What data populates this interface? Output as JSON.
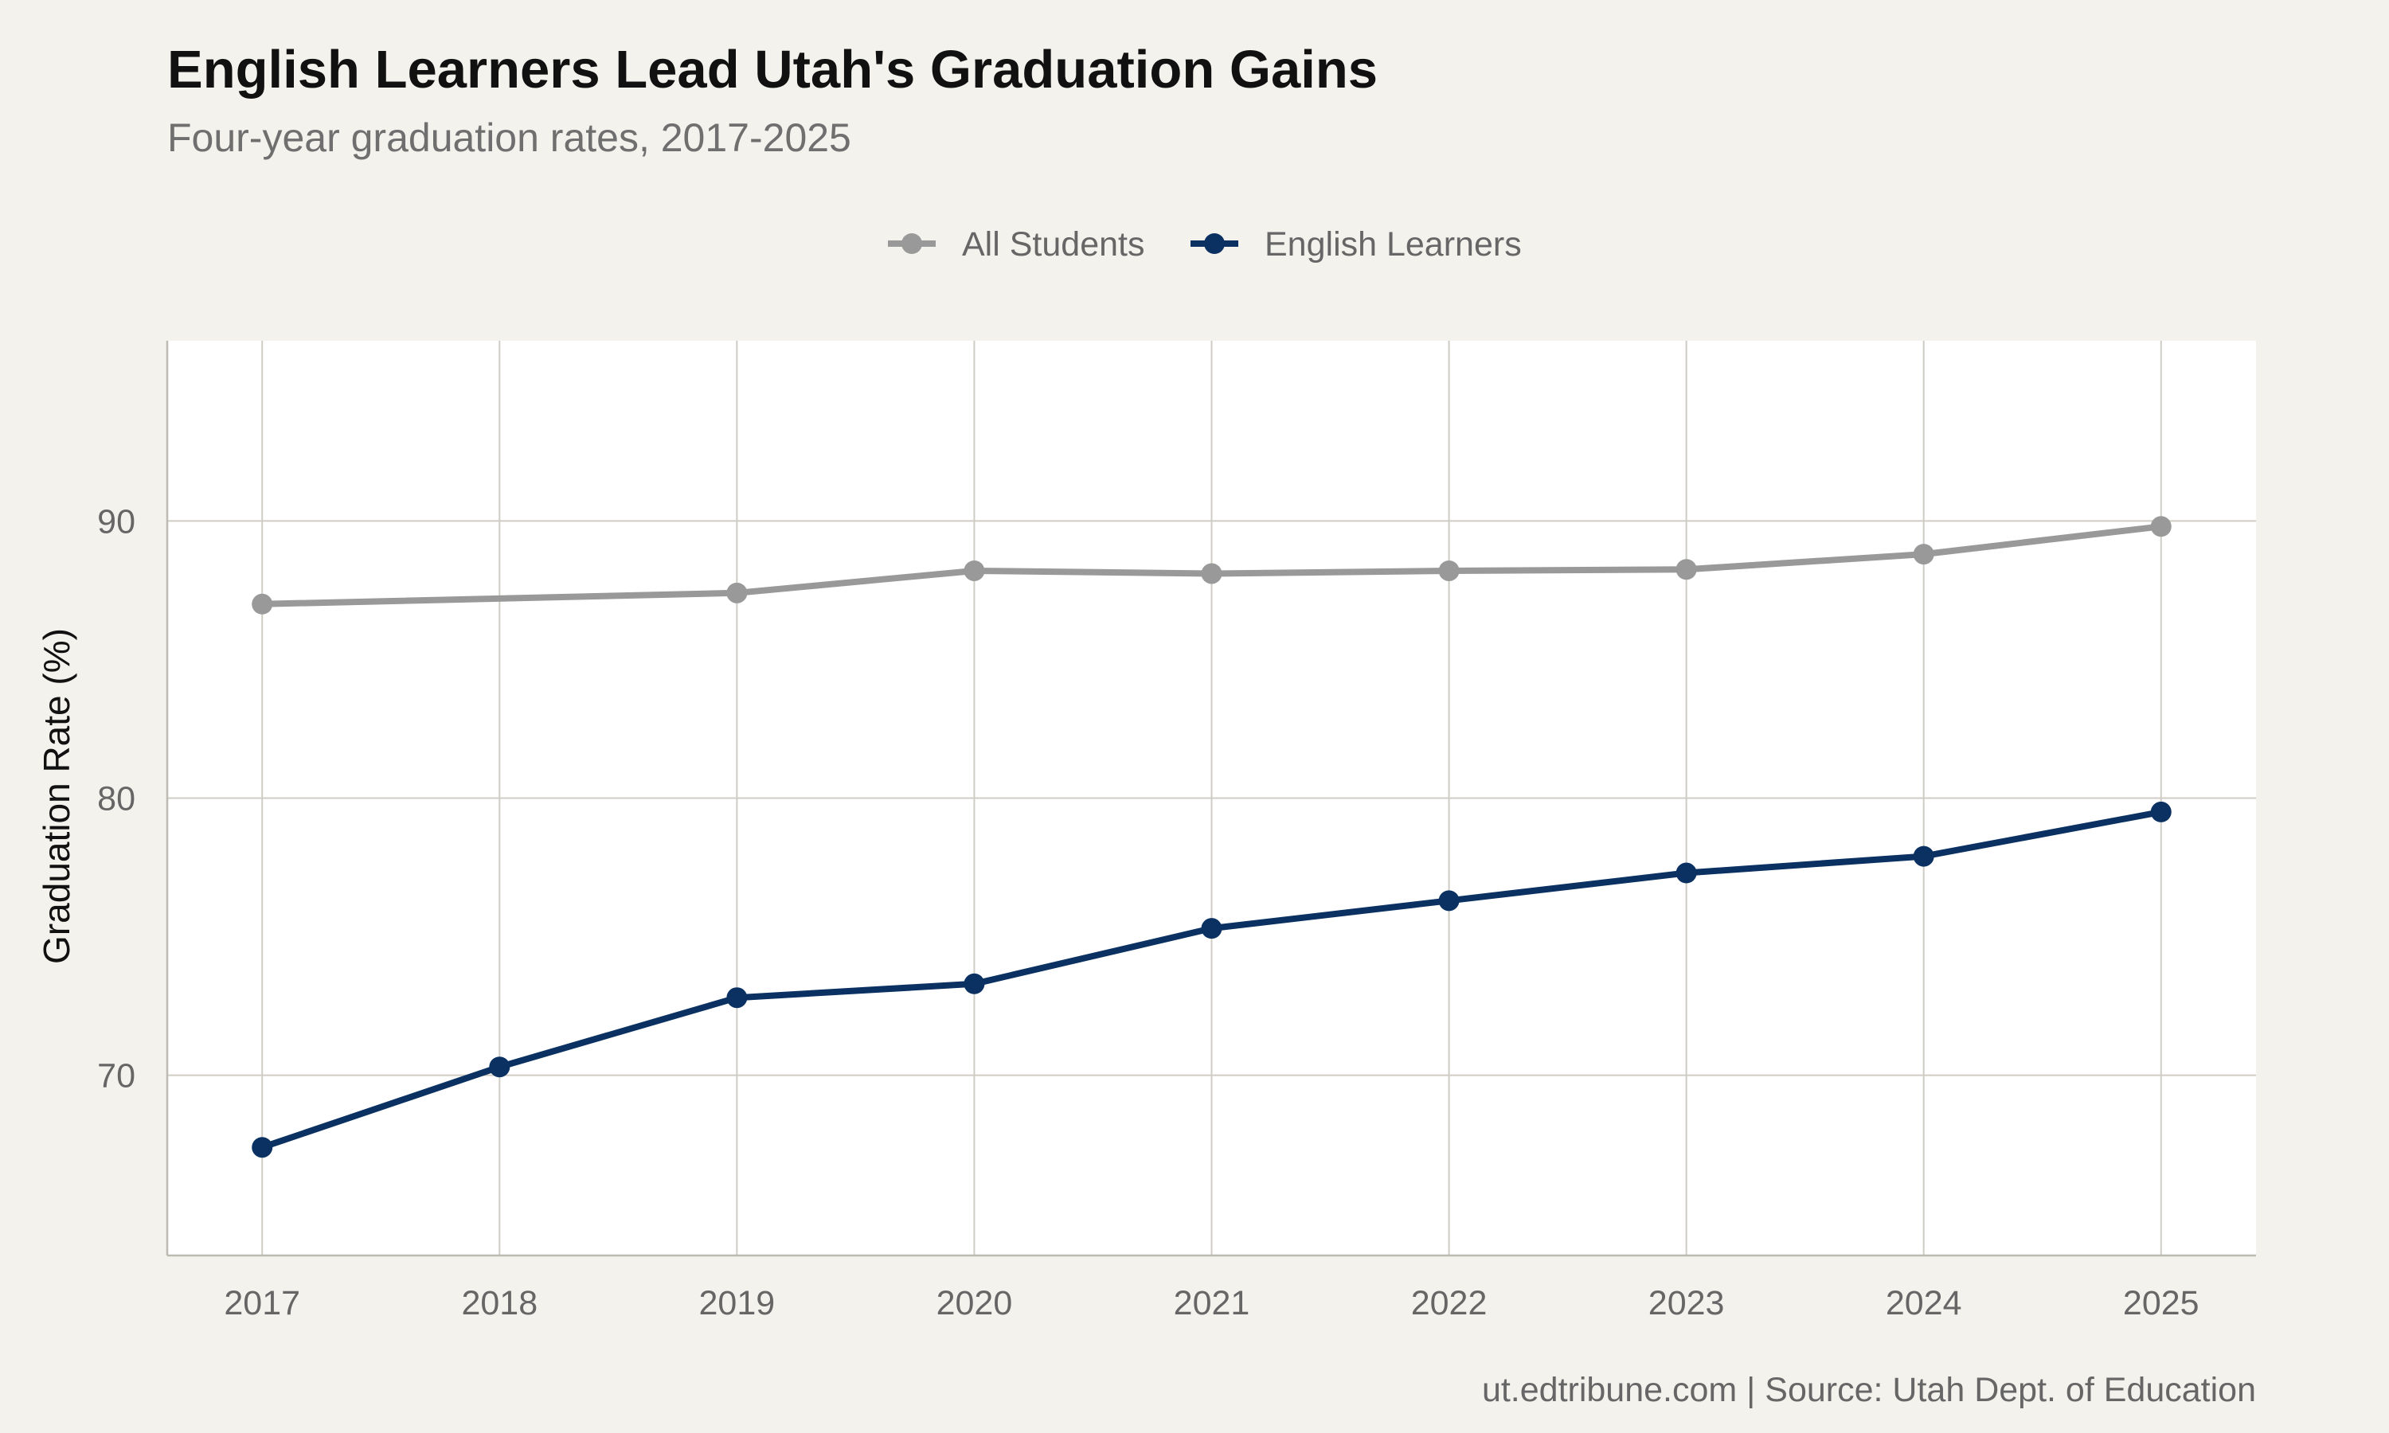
{
  "chart_data": {
    "type": "line",
    "title": "English Learners Lead Utah's Graduation Gains",
    "subtitle": "Four-year graduation rates, 2017-2025",
    "xlabel": "",
    "ylabel": "Graduation Rate (%)",
    "caption": "ut.edtribune.com | Source: Utah Dept. of Education",
    "x": [
      2017,
      2018,
      2019,
      2020,
      2021,
      2022,
      2023,
      2024,
      2025
    ],
    "x_tick_labels": [
      "2017",
      "2018",
      "2019",
      "2020",
      "2021",
      "2022",
      "2023",
      "2024",
      "2025"
    ],
    "xlim": [
      2016.6,
      2025.4
    ],
    "ylim": [
      63.5,
      96.5
    ],
    "y_ticks": [
      70,
      80,
      90
    ],
    "y_tick_labels": [
      "70",
      "80",
      "90"
    ],
    "grid": true,
    "legend_position": "top-center",
    "series": [
      {
        "name": "All Students",
        "color": "#999999",
        "values": [
          87.0,
          null,
          87.4,
          88.2,
          88.1,
          88.2,
          88.25,
          88.8,
          89.8
        ]
      },
      {
        "name": "English Learners",
        "color": "#0a3161",
        "values": [
          67.4,
          70.3,
          72.8,
          73.3,
          75.3,
          76.3,
          77.3,
          77.9,
          79.5
        ]
      }
    ]
  }
}
